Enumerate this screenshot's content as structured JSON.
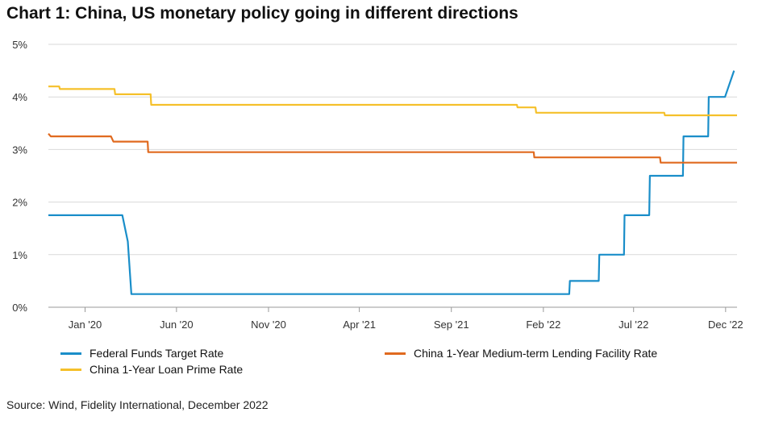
{
  "title": "Chart 1: China, US monetary policy going in different directions",
  "source": "Source: Wind, Fidelity International, December 2022",
  "chart_data": {
    "type": "line",
    "title": "Chart 1: China, US monetary policy going in different directions",
    "ylim": [
      0,
      5
    ],
    "y_ticks": [
      "0%",
      "1%",
      "2%",
      "3%",
      "4%",
      "5%"
    ],
    "x_range": [
      "2019-11-01",
      "2022-12-20"
    ],
    "x_ticks": [
      {
        "label": "Jan '20",
        "date": "2020-01-01"
      },
      {
        "label": "Jun '20",
        "date": "2020-06-01"
      },
      {
        "label": "Nov '20",
        "date": "2020-11-01"
      },
      {
        "label": "Apr '21",
        "date": "2021-04-01"
      },
      {
        "label": "Sep '21",
        "date": "2021-09-01"
      },
      {
        "label": "Feb '22",
        "date": "2022-02-01"
      },
      {
        "label": "Jul '22",
        "date": "2022-07-01"
      },
      {
        "label": "Dec '22",
        "date": "2022-12-01"
      }
    ],
    "grid": true,
    "legend_position": "bottom",
    "series": [
      {
        "name": "Federal Funds Target Rate",
        "color": "#1a8ec9",
        "points": [
          [
            "2019-11-01",
            1.75
          ],
          [
            "2020-03-03",
            1.75
          ],
          [
            "2020-03-12",
            1.25
          ],
          [
            "2020-03-18",
            0.25
          ],
          [
            "2022-03-16",
            0.25
          ],
          [
            "2022-03-17",
            0.5
          ],
          [
            "2022-05-04",
            0.5
          ],
          [
            "2022-05-05",
            1.0
          ],
          [
            "2022-06-15",
            1.0
          ],
          [
            "2022-06-16",
            1.75
          ],
          [
            "2022-07-27",
            1.75
          ],
          [
            "2022-07-28",
            2.5
          ],
          [
            "2022-09-21",
            2.5
          ],
          [
            "2022-09-22",
            3.25
          ],
          [
            "2022-11-02",
            3.25
          ],
          [
            "2022-11-03",
            4.0
          ],
          [
            "2022-11-30",
            4.0
          ],
          [
            "2022-12-15",
            4.5
          ]
        ]
      },
      {
        "name": "China 1-Year Medium-term Lending Facility Rate",
        "color": "#e06a1f",
        "points": [
          [
            "2019-11-01",
            3.3
          ],
          [
            "2019-11-05",
            3.25
          ],
          [
            "2020-02-13",
            3.25
          ],
          [
            "2020-02-17",
            3.15
          ],
          [
            "2020-04-14",
            3.15
          ],
          [
            "2020-04-15",
            2.95
          ],
          [
            "2022-01-16",
            2.95
          ],
          [
            "2022-01-17",
            2.85
          ],
          [
            "2022-08-14",
            2.85
          ],
          [
            "2022-08-15",
            2.75
          ],
          [
            "2022-12-20",
            2.75
          ]
        ]
      },
      {
        "name": "China 1-Year Loan Prime Rate",
        "color": "#f5c02a",
        "points": [
          [
            "2019-11-01",
            4.2
          ],
          [
            "2019-11-19",
            4.2
          ],
          [
            "2019-11-20",
            4.15
          ],
          [
            "2020-02-19",
            4.15
          ],
          [
            "2020-02-20",
            4.05
          ],
          [
            "2020-04-19",
            4.05
          ],
          [
            "2020-04-20",
            3.85
          ],
          [
            "2021-12-19",
            3.85
          ],
          [
            "2021-12-20",
            3.8
          ],
          [
            "2022-01-19",
            3.8
          ],
          [
            "2022-01-20",
            3.7
          ],
          [
            "2022-08-21",
            3.7
          ],
          [
            "2022-08-22",
            3.65
          ],
          [
            "2022-12-20",
            3.65
          ]
        ]
      }
    ]
  }
}
